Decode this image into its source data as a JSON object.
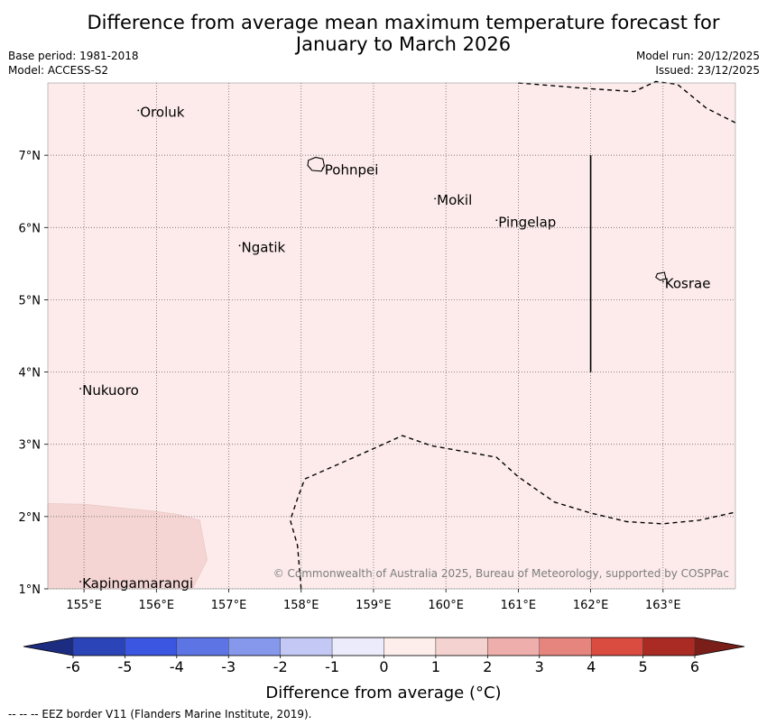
{
  "title_line1": "Difference from average mean maximum temperature forecast for",
  "title_line2": "January to March 2026",
  "meta_left": {
    "base_period": "Base period: 1981-2018",
    "model": "Model: ACCESS-S2"
  },
  "meta_right": {
    "model_run": "Model run: 20/12/2025",
    "issued": "Issued: 23/12/2025"
  },
  "map": {
    "lon_range": [
      154.5,
      164.0
    ],
    "lat_range": [
      1.0,
      8.0
    ],
    "lon_ticks": [
      155,
      156,
      157,
      158,
      159,
      160,
      161,
      162,
      163
    ],
    "lat_ticks": [
      1,
      2,
      3,
      4,
      5,
      6,
      7
    ],
    "lon_tick_labels": [
      "155°E",
      "156°E",
      "157°E",
      "158°E",
      "159°E",
      "160°E",
      "161°E",
      "162°E",
      "163°E"
    ],
    "lat_tick_labels": [
      "1°N",
      "2°N",
      "3°N",
      "4°N",
      "5°N",
      "6°N",
      "7°N"
    ],
    "background_color": "#fcebea",
    "anomaly_region_color": "#f4d5d3",
    "places": [
      {
        "name": "Oroluk",
        "lon": 155.75,
        "lat": 7.62
      },
      {
        "name": "Pohnpei",
        "lon": 158.3,
        "lat": 6.82
      },
      {
        "name": "Mokil",
        "lon": 159.85,
        "lat": 6.4
      },
      {
        "name": "Pingelap",
        "lon": 160.7,
        "lat": 6.1
      },
      {
        "name": "Ngatik",
        "lon": 157.15,
        "lat": 5.75
      },
      {
        "name": "Kosrae",
        "lon": 163.0,
        "lat": 5.25
      },
      {
        "name": "Nukuoro",
        "lon": 154.95,
        "lat": 3.77
      },
      {
        "name": "Kapingamarangi",
        "lon": 154.95,
        "lat": 1.1
      }
    ],
    "copyright": "© Commonwealth of Australia 2025, Bureau of Meteorology, supported by COSPPac"
  },
  "legend": {
    "label": "Difference from average (°C)",
    "ticks": [
      "-6",
      "-5",
      "-4",
      "-3",
      "-2",
      "-1",
      "0",
      "1",
      "2",
      "3",
      "4",
      "5",
      "6"
    ],
    "bins": [
      {
        "from": -6,
        "to": -5,
        "color": "#2b44b8"
      },
      {
        "from": -5,
        "to": -4,
        "color": "#3b56e0"
      },
      {
        "from": -4,
        "to": -3,
        "color": "#5c74e4"
      },
      {
        "from": -3,
        "to": -2,
        "color": "#8598ec"
      },
      {
        "from": -2,
        "to": -1,
        "color": "#c3c9f4"
      },
      {
        "from": -1,
        "to": 0,
        "color": "#ebebfb"
      },
      {
        "from": 0,
        "to": 1,
        "color": "#fdeeec"
      },
      {
        "from": 1,
        "to": 2,
        "color": "#f4d2d0"
      },
      {
        "from": 2,
        "to": 3,
        "color": "#eeaeab"
      },
      {
        "from": 3,
        "to": 4,
        "color": "#e6857d"
      },
      {
        "from": 4,
        "to": 5,
        "color": "#da4b40"
      },
      {
        "from": 5,
        "to": 6,
        "color": "#aa2a24"
      }
    ],
    "under_color": "#1c2c80",
    "over_color": "#7a1e1a"
  },
  "footer": "--  --  -- EEZ border V11 (Flanders Marine Institute, 2019)."
}
